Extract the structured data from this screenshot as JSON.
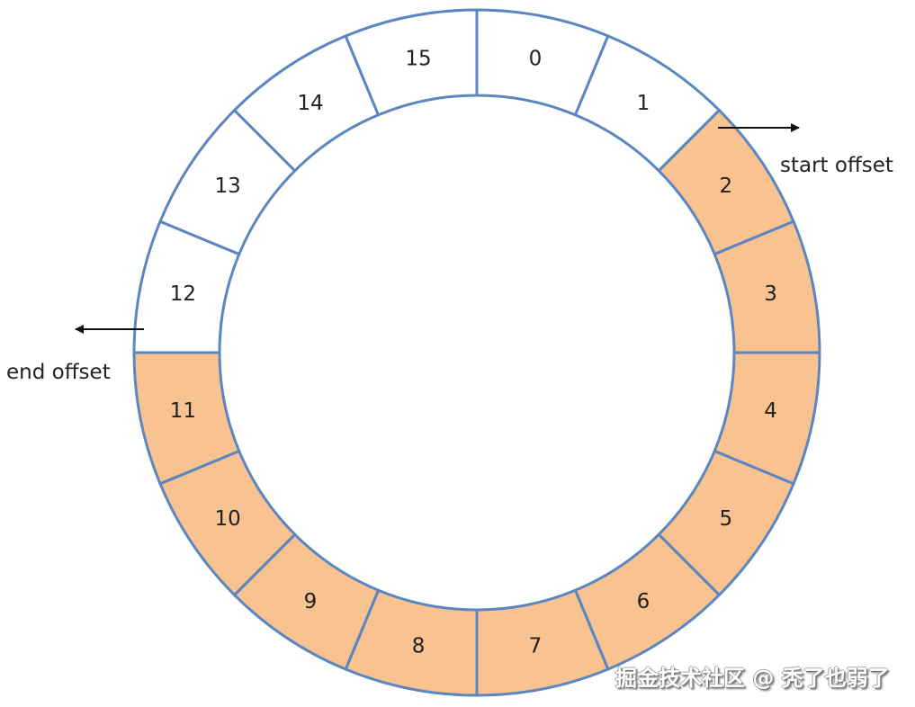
{
  "diagram": {
    "segments": [
      {
        "label": "0",
        "filled": false
      },
      {
        "label": "1",
        "filled": false
      },
      {
        "label": "2",
        "filled": true
      },
      {
        "label": "3",
        "filled": true
      },
      {
        "label": "4",
        "filled": true
      },
      {
        "label": "5",
        "filled": true
      },
      {
        "label": "6",
        "filled": true
      },
      {
        "label": "7",
        "filled": true
      },
      {
        "label": "8",
        "filled": true
      },
      {
        "label": "9",
        "filled": true
      },
      {
        "label": "10",
        "filled": true
      },
      {
        "label": "11",
        "filled": true
      },
      {
        "label": "12",
        "filled": false
      },
      {
        "label": "13",
        "filled": false
      },
      {
        "label": "14",
        "filled": false
      },
      {
        "label": "15",
        "filled": false
      }
    ],
    "start_label": "start offset",
    "end_label": "end offset",
    "colors": {
      "fill": "#F8C291",
      "empty": "#FFFFFF",
      "stroke": "#5B86C0",
      "arrow": "#111111"
    }
  },
  "watermark": "掘金技术社区 @ 秃了也弱了"
}
